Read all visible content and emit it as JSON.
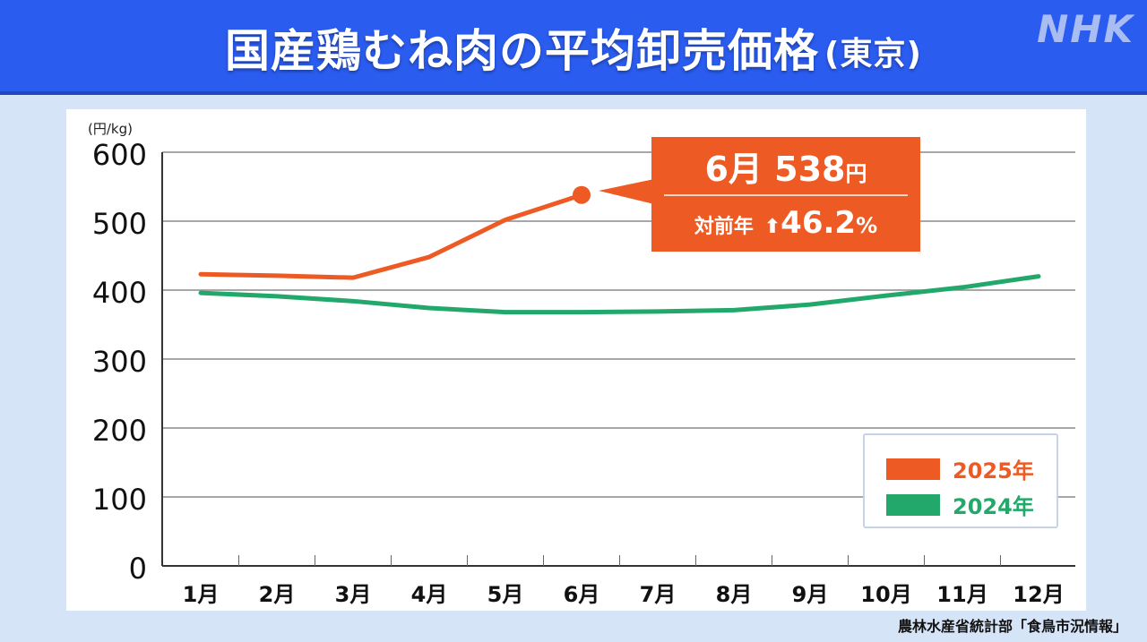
{
  "header": {
    "title": "国産鶏むね肉の平均卸売価格",
    "subtitle": "(東京)",
    "logo": "NHK"
  },
  "colors": {
    "header_bg": "#2a5cf0",
    "series_2025": "#ee5a24",
    "series_2024": "#22a86b",
    "page_bg": "#d6e4f7"
  },
  "axis": {
    "unit": "(円/kg)",
    "y_ticks": [
      "600",
      "500",
      "400",
      "300",
      "200",
      "100",
      "0"
    ],
    "x_ticks": [
      "1月",
      "2月",
      "3月",
      "4月",
      "5月",
      "6月",
      "7月",
      "8月",
      "9月",
      "10月",
      "11月",
      "12月"
    ]
  },
  "callout": {
    "month": "6月",
    "value": "538",
    "yen": "円",
    "prefix": "対前年",
    "arrow": "⬆",
    "change": "46.2",
    "pct": "%"
  },
  "legend": {
    "items": [
      {
        "label": "2025年",
        "color": "#ee5a24"
      },
      {
        "label": "2024年",
        "color": "#22a86b"
      }
    ]
  },
  "source": "農林水産省統計部「食鳥市況情報」",
  "chart_data": {
    "type": "line",
    "title": "国産鶏むね肉の平均卸売価格(東京)",
    "xlabel": "",
    "ylabel": "(円/kg)",
    "ylim": [
      0,
      600
    ],
    "yticks": [
      0,
      100,
      200,
      300,
      400,
      500,
      600
    ],
    "grid": true,
    "legend_position": "lower right",
    "categories": [
      "1月",
      "2月",
      "3月",
      "4月",
      "5月",
      "6月",
      "7月",
      "8月",
      "9月",
      "10月",
      "11月",
      "12月"
    ],
    "series": [
      {
        "name": "2025年",
        "color": "#ee5a24",
        "values": [
          423,
          421,
          418,
          448,
          502,
          538,
          null,
          null,
          null,
          null,
          null,
          null
        ]
      },
      {
        "name": "2024年",
        "color": "#22a86b",
        "values": [
          396,
          391,
          384,
          374,
          368,
          368,
          369,
          371,
          379,
          392,
          404,
          420
        ]
      }
    ],
    "annotations": [
      {
        "text": "6月 538円",
        "subtext": "対前年 ⬆46.2%",
        "x": "6月",
        "y": 538
      }
    ]
  }
}
